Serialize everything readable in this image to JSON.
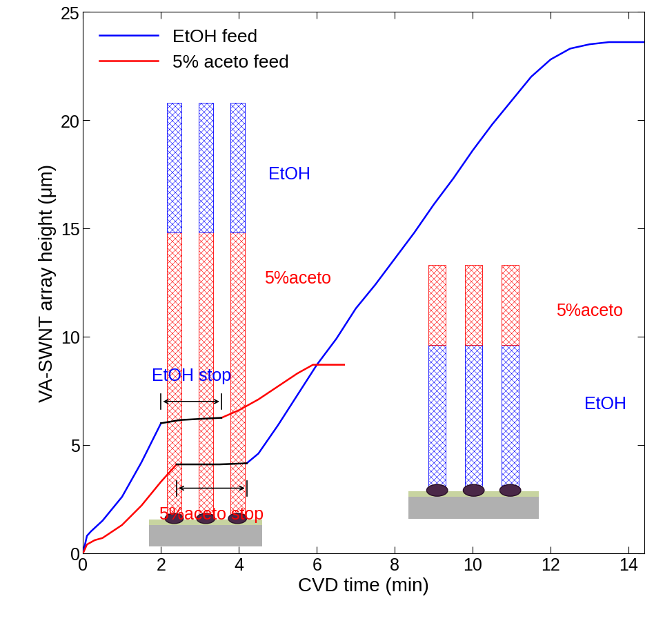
{
  "chart_data": {
    "type": "line",
    "x_label": "CVD time (min)",
    "y_label": "VA-SWNT array height (μm)",
    "xlim": [
      0,
      14.4
    ],
    "xticks": [
      0,
      2,
      4,
      6,
      8,
      10,
      12,
      14
    ],
    "ylim": [
      0,
      25
    ],
    "yticks": [
      0,
      5,
      10,
      15,
      20,
      25
    ],
    "legend": "upper left",
    "series": [
      {
        "name": "EtOH feed",
        "color": "#0000ff",
        "x": [
          0,
          0.1,
          0.2,
          0.5,
          1.0,
          1.5,
          2.0,
          3.0,
          4.2,
          4.5,
          5.0,
          5.5,
          6.0,
          6.5,
          7.0,
          7.5,
          8.0,
          8.5,
          9.0,
          9.5,
          10.0,
          10.5,
          11.0,
          11.5,
          12.0,
          12.5,
          13.0,
          13.5,
          14.4
        ],
        "values": [
          0,
          0.8,
          1.0,
          1.5,
          2.6,
          4.2,
          6.0,
          null,
          4.15,
          4.6,
          5.9,
          7.3,
          8.7,
          9.9,
          11.3,
          12.4,
          13.6,
          14.8,
          16.1,
          17.3,
          18.6,
          19.8,
          20.9,
          22.0,
          22.8,
          23.3,
          23.5,
          23.6,
          23.6
        ]
      },
      {
        "name": "5% aceto feed",
        "color": "#ff0000",
        "x": [
          0,
          0.1,
          0.3,
          0.5,
          1.0,
          1.5,
          2.0,
          2.4,
          3.0,
          3.55,
          4.0,
          4.5,
          5.0,
          5.5,
          5.9,
          6.7
        ],
        "values": [
          0,
          0.4,
          0.6,
          0.7,
          1.3,
          2.2,
          3.3,
          4.1,
          null,
          6.25,
          6.6,
          7.1,
          7.7,
          8.3,
          8.7,
          8.7
        ]
      },
      {
        "color": "#000000",
        "x": [
          2.0,
          2.5,
          3.0,
          3.55
        ],
        "values": [
          6.0,
          6.15,
          6.2,
          6.25
        ]
      },
      {
        "color": "#000000",
        "x": [
          2.4,
          3.0,
          3.5,
          4.2
        ],
        "values": [
          4.1,
          4.1,
          4.1,
          4.15
        ]
      }
    ],
    "annotations": [
      {
        "text": "EtOH stop",
        "color": "#0000ff"
      },
      {
        "text": "5%aceto stop",
        "color": "#ff0000"
      },
      {
        "text": "EtOH",
        "color": "#0000ff"
      },
      {
        "text": "5%aceto",
        "color": "#ff0000"
      },
      {
        "text": "5%aceto",
        "color": "#ff0000"
      },
      {
        "text": "EtOH",
        "color": "#0000ff"
      }
    ]
  }
}
